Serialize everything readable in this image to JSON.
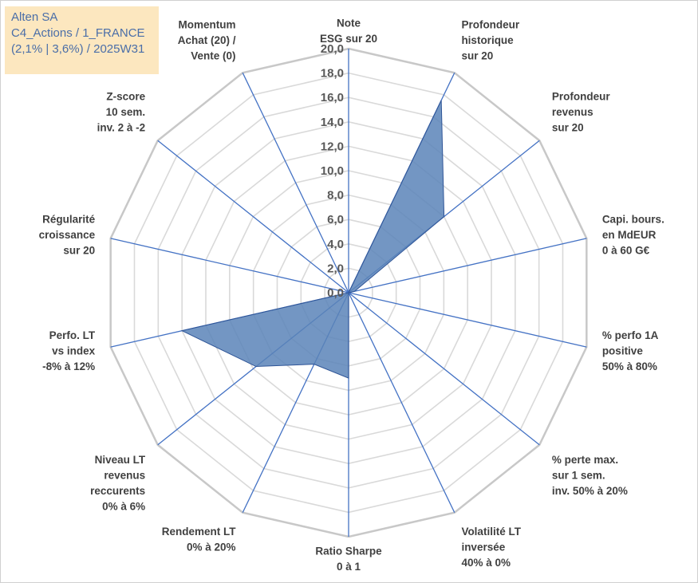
{
  "infobox": {
    "line1": "Alten SA",
    "line2": "C4_Actions / 1_FRANCE",
    "line3": "(2,1% | 3,6%) / 2025W31",
    "bg_color": "#fce7bf",
    "text_color": "#4a6ea8"
  },
  "chart_data": {
    "type": "radar",
    "rmin": 0,
    "rmax": 20,
    "tick_step": 2,
    "tick_labels": [
      "0,0",
      "2,0",
      "4,0",
      "6,0",
      "8,0",
      "10,0",
      "12,0",
      "14,0",
      "16,0",
      "18,0",
      "20,0"
    ],
    "fill_color": "#5b84b8",
    "stroke_color": "#2f5597",
    "grid_color": "#d9d9d9",
    "axes": [
      {
        "label": [
          "Note",
          "ESG sur 20"
        ],
        "value": 0
      },
      {
        "label": [
          "Profondeur",
          "historique",
          "sur 20"
        ],
        "value": 17.5
      },
      {
        "label": [
          "Profondeur",
          "revenus",
          "sur 20"
        ],
        "value": 10.0
      },
      {
        "label": [
          "Capi. bours.",
          "en MdEUR",
          "0 à 60 G€"
        ],
        "value": 0.5
      },
      {
        "label": [
          "% perfo 1A",
          "positive",
          "50% à 80%"
        ],
        "value": 0
      },
      {
        "label": [
          "% perte max.",
          "sur 1 sem.",
          "inv. 50% à 20%"
        ],
        "value": 0
      },
      {
        "label": [
          "Volatilité LT",
          "inversée",
          "40% à 0%"
        ],
        "value": 0
      },
      {
        "label": [
          "Ratio Sharpe",
          "0 à 1"
        ],
        "value": 7.0
      },
      {
        "label": [
          "Rendement LT",
          "0% à 20%"
        ],
        "value": 6.5
      },
      {
        "label": [
          "Niveau LT",
          "revenus",
          "reccurents",
          "0% à 6%"
        ],
        "value": 9.7
      },
      {
        "label": [
          "Perfo. LT",
          "vs index",
          "-8% à 12%"
        ],
        "value": 14.0
      },
      {
        "label": [
          "Régularité",
          "croissance",
          "sur 20"
        ],
        "value": 0
      },
      {
        "label": [
          "Z-score",
          "10 sem.",
          "inv. 2 à -2"
        ],
        "value": 0
      },
      {
        "label": [
          "Momentum",
          "Achat (20) /",
          "Vente (0)"
        ],
        "value": 0
      }
    ]
  }
}
